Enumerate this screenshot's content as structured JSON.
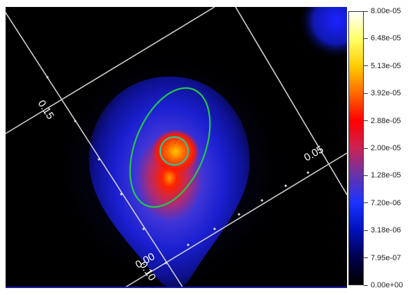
{
  "image": {
    "grid_labels": [
      "0.15",
      "0.05",
      "0.00",
      "0.10"
    ]
  },
  "colorbar": {
    "labels": [
      "8.00e-05",
      "6.48e-05",
      "5.13e-05",
      "3.92e-05",
      "2.88e-05",
      "2.00e-05",
      "1.28e-05",
      "7.20e-06",
      "3.18e-06",
      "7.95e-07",
      "0.00e+00"
    ],
    "gradient_colors": [
      "#ffffff",
      "#ffff66",
      "#ffcc00",
      "#ff6600",
      "#ff0000",
      "#cc2255",
      "#6633aa",
      "#1a33ff",
      "#0011bb",
      "#00004d",
      "#000000"
    ]
  }
}
